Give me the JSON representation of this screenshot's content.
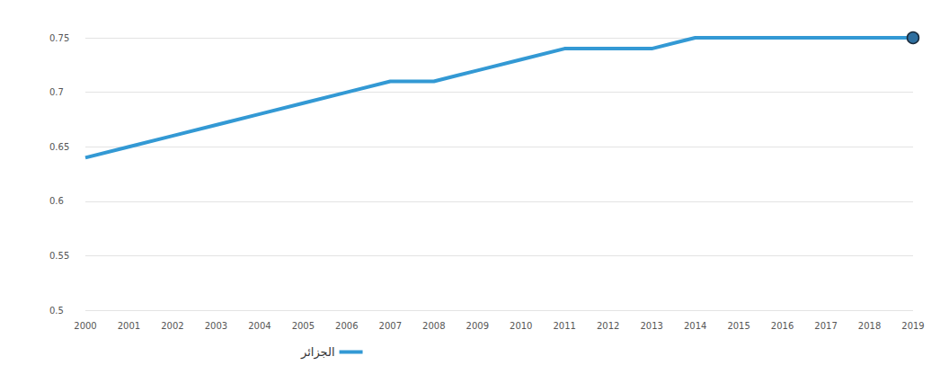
{
  "chart_data": {
    "type": "line",
    "categories": [
      "2000",
      "2001",
      "2002",
      "2003",
      "2004",
      "2005",
      "2006",
      "2007",
      "2008",
      "2009",
      "2010",
      "2011",
      "2012",
      "2013",
      "2014",
      "2015",
      "2016",
      "2017",
      "2018",
      "2019"
    ],
    "series": [
      {
        "name": "الجزائر",
        "color": "#3399d4",
        "marker": "circle",
        "values": [
          0.64,
          0.65,
          0.66,
          0.67,
          0.68,
          0.69,
          0.7,
          0.71,
          0.71,
          0.72,
          0.73,
          0.74,
          0.74,
          0.74,
          0.75,
          0.75,
          0.75,
          0.75,
          0.75,
          0.75
        ]
      }
    ],
    "ylim": [
      0.5,
      0.75
    ],
    "yticks": [
      0.5,
      0.55,
      0.6,
      0.65,
      0.7,
      0.75
    ],
    "grid": true,
    "legend": "bottom"
  }
}
